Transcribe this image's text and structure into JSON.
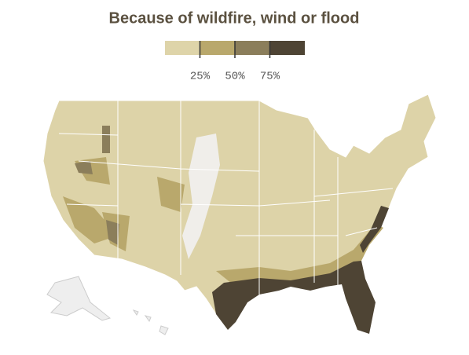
{
  "title": "Because of wildfire, wind or flood",
  "legend": {
    "range": [
      0,
      100
    ],
    "colors": [
      "#ded4a9",
      "#b9a86c",
      "#8b7e5b",
      "#4e4434"
    ],
    "ticks": [
      {
        "value": 25,
        "label": "25%"
      },
      {
        "value": 50,
        "label": "50%"
      },
      {
        "value": 75,
        "label": "75%"
      }
    ]
  }
}
